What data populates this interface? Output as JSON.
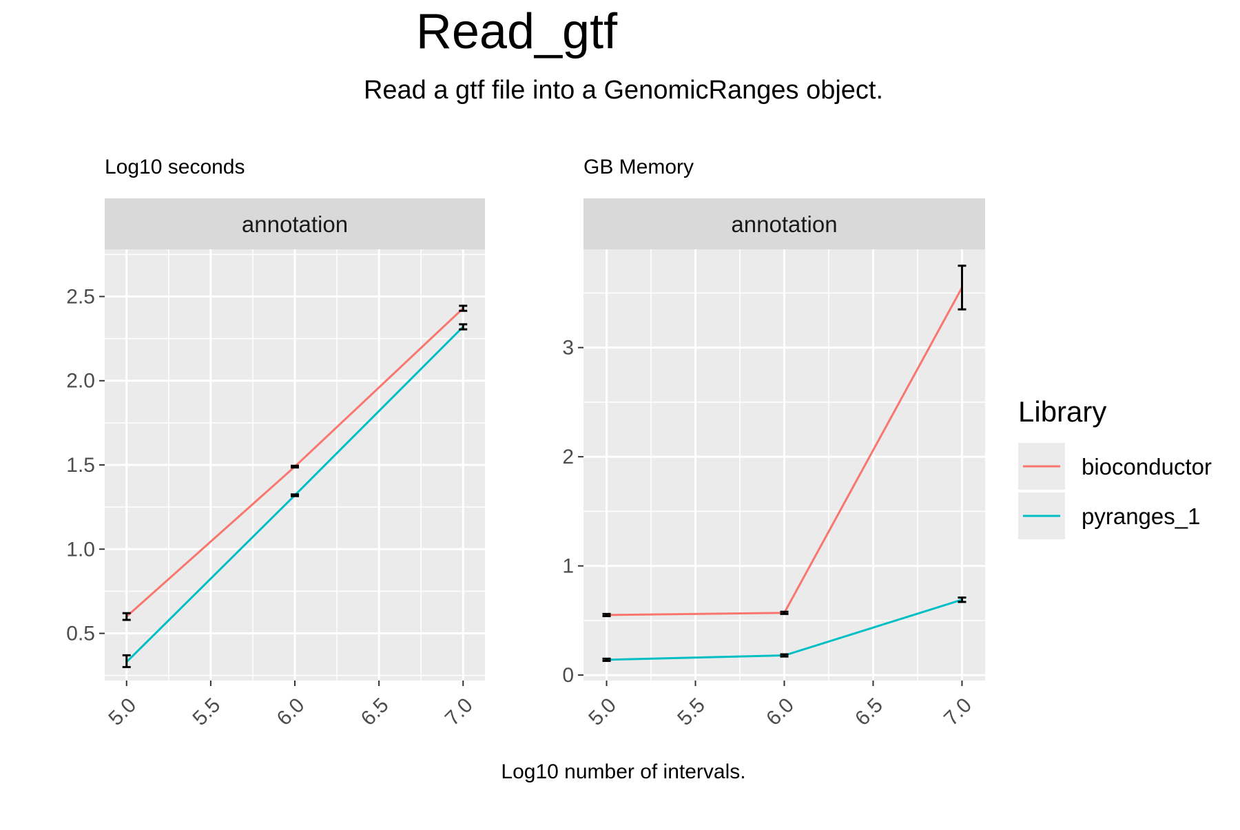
{
  "title": "Read_gtf",
  "subtitle": "Read a gtf file into a GenomicRanges object.",
  "xlabel": "Log10 number of intervals.",
  "legend": {
    "title": "Library",
    "entries": [
      {
        "name": "bioconductor",
        "color": "#F8766D"
      },
      {
        "name": "pyranges_1",
        "color": "#00BFC4"
      }
    ]
  },
  "chart_data": [
    {
      "type": "line",
      "panel_label": "Log10 seconds",
      "facet": "annotation",
      "xlim": [
        4.87,
        7.13
      ],
      "ylim": [
        0.22,
        2.78
      ],
      "xticks": [
        "5.0",
        "5.5",
        "6.0",
        "6.5",
        "7.0"
      ],
      "yticks": [
        "0.5",
        "1.0",
        "1.5",
        "2.0",
        "2.5"
      ],
      "series": [
        {
          "name": "bioconductor",
          "color": "#F8766D",
          "x": [
            5.0,
            6.0,
            7.0
          ],
          "y": [
            0.6,
            1.49,
            2.43
          ],
          "ymin": [
            0.58,
            1.485,
            2.415
          ],
          "ymax": [
            0.62,
            1.495,
            2.445
          ]
        },
        {
          "name": "pyranges_1",
          "color": "#00BFC4",
          "x": [
            5.0,
            6.0,
            7.0
          ],
          "y": [
            0.33,
            1.32,
            2.32
          ],
          "ymin": [
            0.3,
            1.315,
            2.305
          ],
          "ymax": [
            0.37,
            1.325,
            2.335
          ]
        }
      ]
    },
    {
      "type": "line",
      "panel_label": "GB Memory",
      "facet": "annotation",
      "xlim": [
        4.87,
        7.13
      ],
      "ylim": [
        -0.05,
        3.9
      ],
      "xticks": [
        "5.0",
        "5.5",
        "6.0",
        "6.5",
        "7.0"
      ],
      "yticks": [
        "0",
        "1",
        "2",
        "3"
      ],
      "series": [
        {
          "name": "bioconductor",
          "color": "#F8766D",
          "x": [
            5.0,
            6.0,
            7.0
          ],
          "y": [
            0.55,
            0.57,
            3.55
          ],
          "ymin": [
            0.54,
            0.56,
            3.35
          ],
          "ymax": [
            0.56,
            0.58,
            3.75
          ]
        },
        {
          "name": "pyranges_1",
          "color": "#00BFC4",
          "x": [
            5.0,
            6.0,
            7.0
          ],
          "y": [
            0.14,
            0.18,
            0.69
          ],
          "ymin": [
            0.13,
            0.17,
            0.67
          ],
          "ymax": [
            0.15,
            0.19,
            0.71
          ]
        }
      ]
    }
  ]
}
